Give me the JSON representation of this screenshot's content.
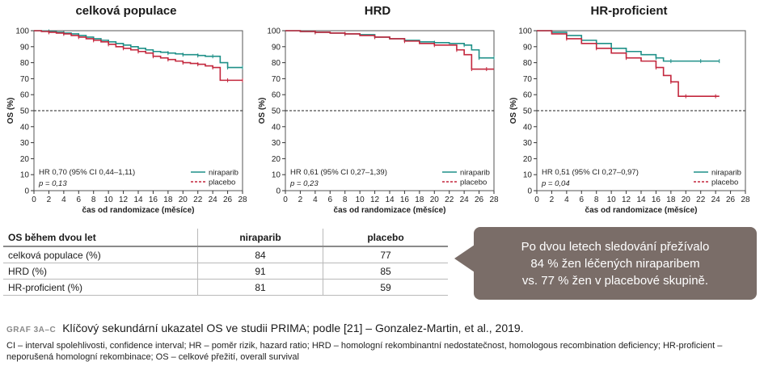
{
  "chart_data": [
    {
      "type": "line",
      "title": "celková populace",
      "xlabel": "čas od randomizace (měsíce)",
      "ylabel": "OS (%)",
      "xlim": [
        0,
        28
      ],
      "ylim": [
        0,
        100
      ],
      "xticks": [
        0,
        2,
        4,
        6,
        8,
        10,
        12,
        14,
        16,
        18,
        20,
        22,
        24,
        26,
        28
      ],
      "yticks": [
        0,
        10,
        20,
        30,
        40,
        50,
        60,
        70,
        80,
        90,
        100
      ],
      "reference_line": 50,
      "annotation": [
        "HR 0,70 (95% CI 0,44–1,11)",
        "p = 0,13"
      ],
      "legend": [
        "niraparib",
        "placebo"
      ],
      "series": [
        {
          "name": "niraparib",
          "color": "#1f9088",
          "style": "solid",
          "x": [
            0,
            1,
            2,
            3,
            4,
            5,
            6,
            7,
            8,
            9,
            10,
            11,
            12,
            13,
            14,
            15,
            16,
            17,
            18,
            19,
            20,
            21,
            22,
            23,
            24,
            25,
            26,
            27,
            28
          ],
          "y": [
            100,
            99.8,
            99.5,
            99,
            98.5,
            98,
            97,
            96,
            95,
            94,
            93,
            92,
            91,
            90,
            89,
            88,
            87,
            86.5,
            86,
            85.5,
            85,
            85,
            84.5,
            84,
            84,
            80,
            77,
            77,
            77
          ]
        },
        {
          "name": "placebo",
          "color": "#c3273d",
          "style": "dashed",
          "x": [
            0,
            1,
            2,
            3,
            4,
            5,
            6,
            7,
            8,
            9,
            10,
            11,
            12,
            13,
            14,
            15,
            16,
            17,
            18,
            19,
            20,
            21,
            22,
            23,
            24,
            25,
            26,
            27,
            28
          ],
          "y": [
            100,
            99.5,
            99,
            98.5,
            98,
            97,
            96,
            95,
            94,
            93,
            91.5,
            90,
            89,
            88,
            87,
            86,
            84,
            83,
            82,
            81,
            80,
            79.5,
            79,
            78,
            77,
            69,
            69,
            69,
            69
          ]
        }
      ]
    },
    {
      "type": "line",
      "title": "HRD",
      "xlabel": "čas od randomizace (měsíce)",
      "ylabel": "OS (%)",
      "xlim": [
        0,
        28
      ],
      "ylim": [
        0,
        100
      ],
      "xticks": [
        0,
        2,
        4,
        6,
        8,
        10,
        12,
        14,
        16,
        18,
        20,
        22,
        24,
        26,
        28
      ],
      "yticks": [
        0,
        10,
        20,
        30,
        40,
        50,
        60,
        70,
        80,
        90,
        100
      ],
      "reference_line": 50,
      "annotation": [
        "HR 0,61 (95% CI 0,27–1,39)",
        "p = 0,23"
      ],
      "legend": [
        "niraparib",
        "placebo"
      ],
      "series": [
        {
          "name": "niraparib",
          "color": "#1f9088",
          "style": "solid",
          "x": [
            0,
            2,
            4,
            6,
            8,
            10,
            12,
            14,
            16,
            18,
            20,
            22,
            24,
            25,
            26,
            27,
            28
          ],
          "y": [
            100,
            99.5,
            99,
            98.5,
            98,
            97.5,
            96,
            95,
            94,
            93,
            92.5,
            92,
            91,
            88,
            83,
            83,
            83
          ]
        },
        {
          "name": "placebo",
          "color": "#c3273d",
          "style": "dashed",
          "x": [
            0,
            2,
            4,
            6,
            8,
            10,
            12,
            14,
            16,
            18,
            20,
            22,
            23,
            24,
            25,
            26,
            27,
            28
          ],
          "y": [
            100,
            99.5,
            99,
            98.5,
            98,
            97,
            96,
            95,
            93.5,
            92,
            91,
            91,
            88,
            85,
            76,
            76,
            76,
            76
          ]
        }
      ]
    },
    {
      "type": "line",
      "title": "HR-proficient",
      "xlabel": "čas od randomizace (měsíce)",
      "ylabel": "OS (%)",
      "xlim": [
        0,
        28
      ],
      "ylim": [
        0,
        100
      ],
      "xticks": [
        0,
        2,
        4,
        6,
        8,
        10,
        12,
        14,
        16,
        18,
        20,
        22,
        24,
        26,
        28
      ],
      "yticks": [
        0,
        10,
        20,
        30,
        40,
        50,
        60,
        70,
        80,
        90,
        100
      ],
      "reference_line": 50,
      "annotation": [
        "HR 0,51 (95% CI 0,27–0,97)",
        "p = 0,04"
      ],
      "legend": [
        "niraparib",
        "placebo"
      ],
      "series": [
        {
          "name": "niraparib",
          "color": "#1f9088",
          "style": "solid",
          "x": [
            0,
            2,
            4,
            6,
            8,
            10,
            12,
            14,
            16,
            17,
            18,
            20,
            22,
            24,
            24.5
          ],
          "y": [
            100,
            99,
            97,
            94,
            92,
            89,
            87,
            85,
            83,
            81,
            81,
            81,
            81,
            81,
            81
          ]
        },
        {
          "name": "placebo",
          "color": "#c3273d",
          "style": "dashed",
          "x": [
            0,
            2,
            4,
            6,
            8,
            10,
            12,
            14,
            16,
            17,
            18,
            19,
            20,
            22,
            24,
            24.5
          ],
          "y": [
            100,
            98,
            95,
            92,
            89,
            86,
            83,
            81,
            77,
            72,
            68,
            59,
            59,
            59,
            59,
            59
          ]
        }
      ]
    }
  ],
  "table": {
    "headers": [
      "OS během dvou let",
      "niraparib",
      "placebo"
    ],
    "rows": [
      [
        "celková populace (%)",
        "84",
        "77"
      ],
      [
        "HRD (%)",
        "91",
        "85"
      ],
      [
        "HR-proficient (%)",
        "81",
        "59"
      ]
    ]
  },
  "callout": {
    "line1": "Po dvou letech sledování přežívalo",
    "line2": "84 % žen léčených niraparibem",
    "line3": "vs. 77 % žen v placebové skupině."
  },
  "caption": {
    "label": "GRAF 3A–C",
    "text": "Klíčový sekundární ukazatel OS ve studii PRIMA; podle [21] – Gonzalez-Martin, et al., 2019."
  },
  "abbreviations": "CI – interval spolehlivosti, confidence interval; HR – poměr rizik, hazard ratio; HRD – homologní rekombinantní nedostatečnost, homologous recombination deficiency; HR-proficient – neporušená homologní rekombinace; OS – celkové přežití, overall survival",
  "colors": {
    "niraparib": "#1f9088",
    "placebo": "#c3273d",
    "callout_bg": "#7a6d68"
  }
}
